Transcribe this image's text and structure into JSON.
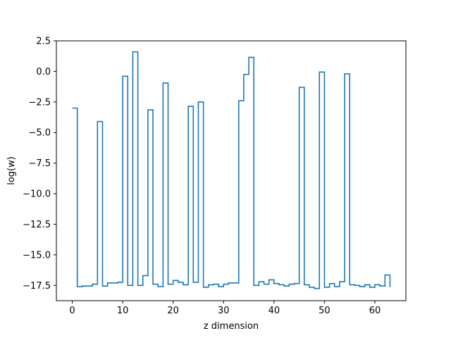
{
  "chart_data": {
    "type": "line",
    "drawstyle": "steps-post",
    "title": "",
    "xlabel": "z dimension",
    "ylabel": "log(w)",
    "xlim": [
      -3.15,
      66.15
    ],
    "ylim": [
      -18.75,
      2.5
    ],
    "x_ticks": [
      0,
      10,
      20,
      30,
      40,
      50,
      60
    ],
    "x_tick_labels": [
      "0",
      "10",
      "20",
      "30",
      "40",
      "50",
      "60"
    ],
    "y_ticks": [
      2.5,
      0.0,
      -2.5,
      -5.0,
      -7.5,
      -10.0,
      -12.5,
      -15.0,
      -17.5
    ],
    "y_tick_labels": [
      "2.5",
      "0.0",
      "−2.5",
      "−5.0",
      "−7.5",
      "−10.0",
      "−12.5",
      "−15.0",
      "−17.5"
    ],
    "grid": false,
    "line_color": "#1f77b4",
    "series": [
      {
        "name": "",
        "x": [
          0,
          1,
          2,
          3,
          4,
          5,
          6,
          7,
          8,
          9,
          10,
          11,
          12,
          13,
          14,
          15,
          16,
          17,
          18,
          19,
          20,
          21,
          22,
          23,
          24,
          25,
          26,
          27,
          28,
          29,
          30,
          31,
          32,
          33,
          34,
          35,
          36,
          37,
          38,
          39,
          40,
          41,
          42,
          43,
          44,
          45,
          46,
          47,
          48,
          49,
          50,
          51,
          52,
          53,
          54,
          55,
          56,
          57,
          58,
          59,
          60,
          61,
          62,
          63
        ],
        "values": [
          -3.0,
          -17.6,
          -17.55,
          -17.55,
          -17.4,
          -4.1,
          -17.55,
          -17.3,
          -17.3,
          -17.25,
          -0.4,
          -17.5,
          1.6,
          -17.5,
          -16.7,
          -3.15,
          -17.4,
          -17.6,
          -0.95,
          -17.4,
          -17.1,
          -17.25,
          -17.45,
          -2.85,
          -17.25,
          -2.5,
          -17.65,
          -17.45,
          -17.4,
          -17.6,
          -17.4,
          -17.3,
          -17.3,
          -2.4,
          -0.25,
          1.15,
          -17.5,
          -17.2,
          -17.4,
          -17.05,
          -17.35,
          -17.45,
          -17.55,
          -17.4,
          -17.35,
          -1.3,
          -17.45,
          -17.65,
          -17.75,
          -0.05,
          -17.65,
          -17.35,
          -17.6,
          -17.2,
          -0.2,
          -17.45,
          -17.5,
          -17.6,
          -17.45,
          -17.65,
          -17.45,
          -17.55,
          -16.65,
          -17.65
        ]
      }
    ]
  }
}
